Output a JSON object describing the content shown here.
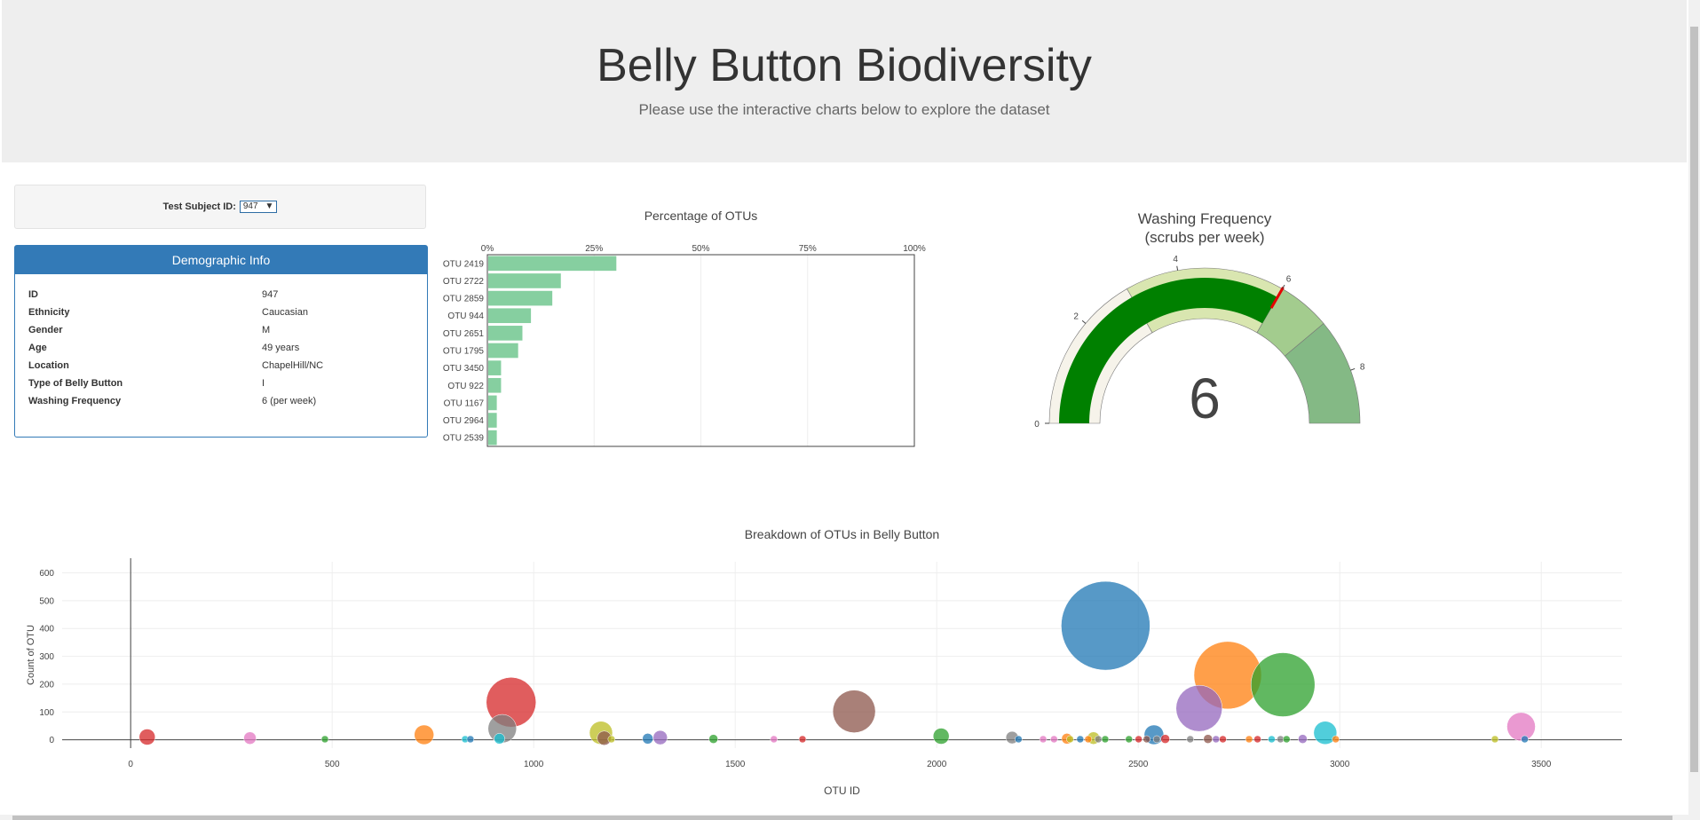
{
  "header": {
    "title": "Belly Button Biodiversity",
    "subtitle": "Please use the interactive charts below to explore the dataset"
  },
  "selector": {
    "label": "Test Subject ID:",
    "value": "947"
  },
  "demographics": {
    "heading": "Demographic Info",
    "rows": [
      {
        "key": "ID",
        "value": "947"
      },
      {
        "key": "Ethnicity",
        "value": "Caucasian"
      },
      {
        "key": "Gender",
        "value": "M"
      },
      {
        "key": "Age",
        "value": "49 years"
      },
      {
        "key": "Location",
        "value": "ChapelHill/NC"
      },
      {
        "key": "Type of Belly Button",
        "value": "I"
      },
      {
        "key": "Washing Frequency",
        "value": "6 (per week)"
      }
    ]
  },
  "colors": {
    "bar": "#86cfa0",
    "gauge_fill": "#008000",
    "needle": "#e60000",
    "header_bg": "#eeeeee",
    "panel": "#337ab7"
  },
  "chart_data": [
    {
      "type": "bar",
      "orientation": "horizontal",
      "title": "Percentage of OTUs",
      "categories": [
        "OTU 2419",
        "OTU 2722",
        "OTU 2859",
        "OTU 944",
        "OTU 2651",
        "OTU 1795",
        "OTU 3450",
        "OTU 922",
        "OTU 1167",
        "OTU 2964",
        "OTU 2539"
      ],
      "values": [
        30,
        17,
        15,
        10,
        8,
        7,
        3,
        3,
        2,
        2,
        2
      ],
      "xlim": [
        0,
        100
      ],
      "xticks": [
        "0%",
        "25%",
        "50%",
        "75%",
        "100%"
      ]
    },
    {
      "type": "gauge",
      "title": "Washing Frequency",
      "subtitle": "(scrubs per week)",
      "value": 6,
      "range": [
        0,
        9
      ],
      "ticks": [
        "0",
        "2",
        "4",
        "6",
        "8"
      ],
      "steps": [
        {
          "range": [
            0,
            3
          ],
          "color": "#f6f3ea"
        },
        {
          "range": [
            3,
            6
          ],
          "color": "#d9e6b0"
        },
        {
          "range": [
            6,
            7
          ],
          "color": "#a3cc8e"
        },
        {
          "range": [
            7,
            9
          ],
          "color": "#84b985"
        }
      ]
    },
    {
      "type": "scatter",
      "title": "Breakdown of OTUs in Belly Button",
      "xlabel": "OTU ID",
      "ylabel": "Count of OTU",
      "xlim": [
        -170,
        3700
      ],
      "ylim": [
        -30,
        640
      ],
      "xticks": [
        "0",
        "500",
        "1000",
        "1500",
        "2000",
        "2500",
        "3000",
        "3500"
      ],
      "yticks": [
        "0",
        "100",
        "200",
        "300",
        "400",
        "500",
        "600"
      ],
      "points": [
        {
          "x": 2419,
          "y": 410,
          "r": 50,
          "c": "#1f77b4"
        },
        {
          "x": 2722,
          "y": 232,
          "r": 38,
          "c": "#ff7f0e"
        },
        {
          "x": 2859,
          "y": 198,
          "r": 36,
          "c": "#2ca02c"
        },
        {
          "x": 944,
          "y": 135,
          "r": 28,
          "c": "#d62728"
        },
        {
          "x": 2651,
          "y": 113,
          "r": 26,
          "c": "#9467bd"
        },
        {
          "x": 1795,
          "y": 102,
          "r": 24,
          "c": "#8c564b"
        },
        {
          "x": 3450,
          "y": 47,
          "r": 16,
          "c": "#e377c2"
        },
        {
          "x": 922,
          "y": 40,
          "r": 16,
          "c": "#7f7f7f"
        },
        {
          "x": 1167,
          "y": 25,
          "r": 13,
          "c": "#bcbd22"
        },
        {
          "x": 2964,
          "y": 25,
          "r": 13,
          "c": "#17becf"
        },
        {
          "x": 2539,
          "y": 18,
          "r": 11,
          "c": "#1f77b4"
        },
        {
          "x": 728,
          "y": 18,
          "r": 11,
          "c": "#ff7f0e"
        },
        {
          "x": 2011,
          "y": 13,
          "r": 9,
          "c": "#2ca02c"
        },
        {
          "x": 41,
          "y": 10,
          "r": 9,
          "c": "#d62728"
        },
        {
          "x": 1314,
          "y": 8,
          "r": 8,
          "c": "#9467bd"
        },
        {
          "x": 1175,
          "y": 6,
          "r": 8,
          "c": "#8c564b"
        },
        {
          "x": 296,
          "y": 6,
          "r": 7,
          "c": "#e377c2"
        },
        {
          "x": 2187,
          "y": 8,
          "r": 7,
          "c": "#7f7f7f"
        },
        {
          "x": 2389,
          "y": 6,
          "r": 7,
          "c": "#bcbd22"
        },
        {
          "x": 915,
          "y": 4,
          "r": 6,
          "c": "#17becf"
        },
        {
          "x": 1283,
          "y": 4,
          "r": 6,
          "c": "#1f77b4"
        },
        {
          "x": 2323,
          "y": 4,
          "r": 6,
          "c": "#ff7f0e"
        },
        {
          "x": 1446,
          "y": 3,
          "r": 5,
          "c": "#2ca02c"
        },
        {
          "x": 2567,
          "y": 3,
          "r": 5,
          "c": "#d62728"
        },
        {
          "x": 2908,
          "y": 3,
          "r": 5,
          "c": "#9467bd"
        },
        {
          "x": 2673,
          "y": 3,
          "r": 5,
          "c": "#8c564b"
        },
        {
          "x": 482,
          "y": 2,
          "r": 4,
          "c": "#2ca02c"
        },
        {
          "x": 1193,
          "y": 2,
          "r": 4,
          "c": "#bcbd22"
        },
        {
          "x": 1596,
          "y": 2,
          "r": 4,
          "c": "#e377c2"
        },
        {
          "x": 1667,
          "y": 2,
          "r": 4,
          "c": "#d62728"
        },
        {
          "x": 830,
          "y": 2,
          "r": 4,
          "c": "#17becf"
        },
        {
          "x": 843,
          "y": 2,
          "r": 4,
          "c": "#1f77b4"
        },
        {
          "x": 2203,
          "y": 2,
          "r": 4,
          "c": "#1f77b4"
        },
        {
          "x": 2264,
          "y": 2,
          "r": 4,
          "c": "#e377c2"
        },
        {
          "x": 2291,
          "y": 2,
          "r": 4,
          "c": "#e377c2"
        },
        {
          "x": 2331,
          "y": 2,
          "r": 4,
          "c": "#bcbd22"
        },
        {
          "x": 2356,
          "y": 2,
          "r": 4,
          "c": "#1f77b4"
        },
        {
          "x": 2376,
          "y": 2,
          "r": 4,
          "c": "#ff7f0e"
        },
        {
          "x": 2401,
          "y": 2,
          "r": 4,
          "c": "#7f7f7f"
        },
        {
          "x": 2418,
          "y": 2,
          "r": 4,
          "c": "#2ca02c"
        },
        {
          "x": 2477,
          "y": 2,
          "r": 4,
          "c": "#2ca02c"
        },
        {
          "x": 2501,
          "y": 2,
          "r": 4,
          "c": "#d62728"
        },
        {
          "x": 2521,
          "y": 2,
          "r": 4,
          "c": "#8c564b"
        },
        {
          "x": 2546,
          "y": 2,
          "r": 4,
          "c": "#7f7f7f"
        },
        {
          "x": 2629,
          "y": 2,
          "r": 4,
          "c": "#7f7f7f"
        },
        {
          "x": 2693,
          "y": 2,
          "r": 4,
          "c": "#9467bd"
        },
        {
          "x": 2710,
          "y": 2,
          "r": 4,
          "c": "#d62728"
        },
        {
          "x": 2775,
          "y": 2,
          "r": 4,
          "c": "#ff7f0e"
        },
        {
          "x": 2796,
          "y": 2,
          "r": 4,
          "c": "#d62728"
        },
        {
          "x": 2831,
          "y": 2,
          "r": 4,
          "c": "#17becf"
        },
        {
          "x": 2853,
          "y": 2,
          "r": 4,
          "c": "#7f7f7f"
        },
        {
          "x": 2868,
          "y": 2,
          "r": 4,
          "c": "#2ca02c"
        },
        {
          "x": 2990,
          "y": 2,
          "r": 4,
          "c": "#ff7f0e"
        },
        {
          "x": 3385,
          "y": 2,
          "r": 4,
          "c": "#bcbd22"
        },
        {
          "x": 3459,
          "y": 2,
          "r": 4,
          "c": "#1f77b4"
        }
      ]
    }
  ]
}
